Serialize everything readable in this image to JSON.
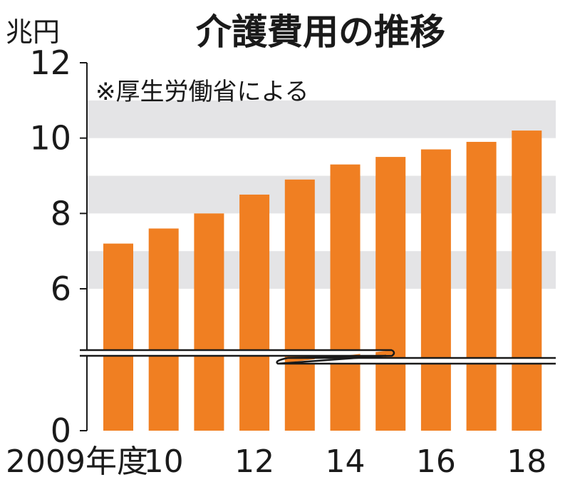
{
  "chart_data": {
    "type": "bar",
    "title": "介護費用の推移",
    "unit_label": "兆円",
    "source_note": "※厚生労働省による",
    "categories": [
      "2009",
      "2010",
      "2011",
      "2012",
      "2013",
      "2014",
      "2015",
      "2016",
      "2017",
      "2018"
    ],
    "x_tick_labels": [
      "2009年度",
      "10",
      "",
      "12",
      "",
      "14",
      "",
      "16",
      "",
      "18"
    ],
    "values": [
      7.2,
      7.6,
      8.0,
      8.5,
      8.9,
      9.3,
      9.5,
      9.7,
      9.9,
      10.2
    ],
    "ylim": [
      0,
      12
    ],
    "y_ticks": [
      "0",
      "6",
      "8",
      "10",
      "12"
    ],
    "axis_break": true,
    "grid": "alternating horizontal bands",
    "colors": {
      "bar": "#f07f22",
      "band": "#e4e4e6",
      "axis": "#1a1a1a"
    }
  }
}
